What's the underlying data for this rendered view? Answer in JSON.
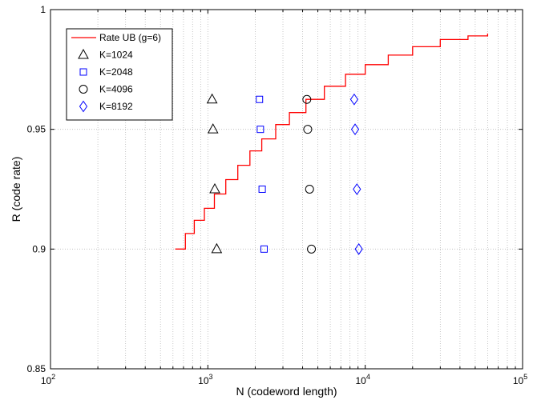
{
  "chart_data": {
    "type": "scatter",
    "xlabel": "N (codeword length)",
    "ylabel": "R (code rate)",
    "xscale": "log",
    "xlim": [
      100,
      100000
    ],
    "ylim": [
      0.85,
      1.0
    ],
    "grid": true,
    "legend_position": "top-left",
    "x_tick_labels": [
      {
        "base": "10",
        "exp": "2"
      },
      {
        "base": "10",
        "exp": "3"
      },
      {
        "base": "10",
        "exp": "4"
      },
      {
        "base": "10",
        "exp": "5"
      }
    ],
    "y_ticks": [
      0.85,
      0.9,
      0.95,
      1.0
    ],
    "y_tick_labels": [
      "0.85",
      "0.9",
      "0.95",
      "1"
    ],
    "curve": {
      "name": "Rate UB (g=6)",
      "color": "#ff0000",
      "style": "staircase",
      "points": [
        {
          "x": 620,
          "y": 0.9
        },
        {
          "x": 720,
          "y": 0.9065
        },
        {
          "x": 820,
          "y": 0.912
        },
        {
          "x": 950,
          "y": 0.917
        },
        {
          "x": 1100,
          "y": 0.923
        },
        {
          "x": 1300,
          "y": 0.929
        },
        {
          "x": 1550,
          "y": 0.935
        },
        {
          "x": 1850,
          "y": 0.941
        },
        {
          "x": 2200,
          "y": 0.946
        },
        {
          "x": 2700,
          "y": 0.952
        },
        {
          "x": 3300,
          "y": 0.957
        },
        {
          "x": 4200,
          "y": 0.9625
        },
        {
          "x": 5500,
          "y": 0.968
        },
        {
          "x": 7500,
          "y": 0.973
        },
        {
          "x": 10000,
          "y": 0.977
        },
        {
          "x": 14000,
          "y": 0.981
        },
        {
          "x": 20000,
          "y": 0.9845
        },
        {
          "x": 30000,
          "y": 0.9875
        },
        {
          "x": 45000,
          "y": 0.989
        },
        {
          "x": 60000,
          "y": 0.99
        }
      ]
    },
    "series": [
      {
        "name": "K=1024",
        "marker": "triangle",
        "color": "#000000",
        "points": [
          {
            "x": 1138,
            "y": 0.9
          },
          {
            "x": 1107,
            "y": 0.925
          },
          {
            "x": 1078,
            "y": 0.95
          },
          {
            "x": 1064,
            "y": 0.9625
          }
        ]
      },
      {
        "name": "K=2048",
        "marker": "square",
        "color": "#0000ff",
        "points": [
          {
            "x": 2276,
            "y": 0.9
          },
          {
            "x": 2214,
            "y": 0.925
          },
          {
            "x": 2156,
            "y": 0.95
          },
          {
            "x": 2128,
            "y": 0.9625
          }
        ]
      },
      {
        "name": "K=4096",
        "marker": "circle",
        "color": "#000000",
        "points": [
          {
            "x": 4551,
            "y": 0.9
          },
          {
            "x": 4428,
            "y": 0.925
          },
          {
            "x": 4312,
            "y": 0.95
          },
          {
            "x": 4256,
            "y": 0.9625
          }
        ]
      },
      {
        "name": "K=8192",
        "marker": "diamond",
        "color": "#0000ff",
        "points": [
          {
            "x": 9102,
            "y": 0.9
          },
          {
            "x": 8856,
            "y": 0.925
          },
          {
            "x": 8623,
            "y": 0.95
          },
          {
            "x": 8512,
            "y": 0.9625
          }
        ]
      }
    ]
  }
}
